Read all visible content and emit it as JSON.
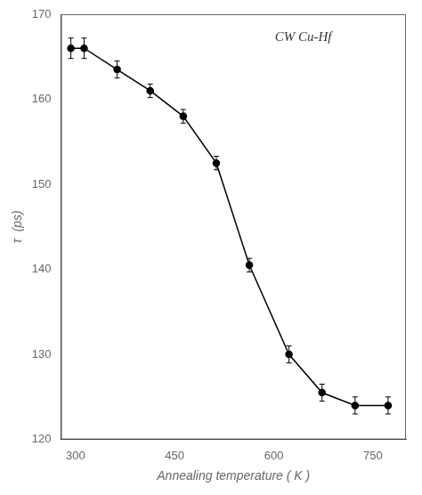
{
  "chart_data": {
    "type": "line",
    "x": [
      293,
      313,
      363,
      413,
      463,
      513,
      563,
      623,
      673,
      723,
      773
    ],
    "values": [
      166.0,
      166.0,
      163.5,
      161.0,
      158.0,
      152.5,
      140.5,
      130.0,
      125.5,
      124.0,
      124.0
    ],
    "yerr": [
      1.2,
      1.2,
      1.0,
      0.8,
      0.8,
      0.8,
      0.8,
      1.0,
      1.0,
      1.0,
      1.0
    ],
    "xlim": [
      278,
      800
    ],
    "ylim": [
      120,
      170
    ],
    "xticks": [
      300,
      450,
      600,
      750
    ],
    "yticks": [
      120,
      130,
      140,
      150,
      160,
      170
    ],
    "xlabel": "Annealing temperature ( K )",
    "ylabel": "τ  (ps)",
    "annotation": "CW Cu-Hf",
    "color": "#000000",
    "marker": "circle",
    "line_style": "solid",
    "grid": false
  }
}
